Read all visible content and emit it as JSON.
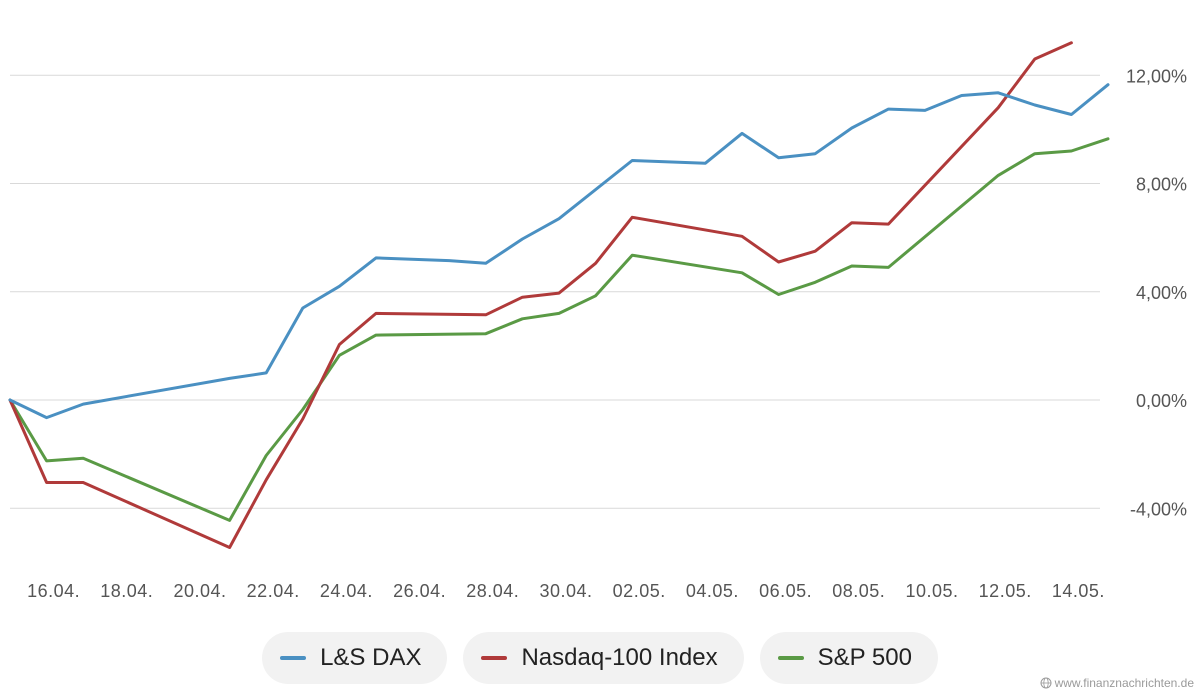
{
  "chart_data": {
    "type": "line",
    "title": "",
    "xlabel": "",
    "ylabel": "",
    "ylim": [
      -6,
      14.5
    ],
    "y_ticks": [
      {
        "value": 12,
        "label": "12,00%"
      },
      {
        "value": 8,
        "label": "8,00%"
      },
      {
        "value": 4,
        "label": "4,00%"
      },
      {
        "value": 0,
        "label": "0,00%"
      },
      {
        "value": -4,
        "label": "-4,00%"
      }
    ],
    "x_ticks": [
      "16.04.",
      "18.04.",
      "20.04.",
      "22.04.",
      "24.04.",
      "26.04.",
      "28.04.",
      "30.04.",
      "02.05.",
      "04.05.",
      "06.05.",
      "08.05.",
      "10.05.",
      "12.05.",
      "14.05."
    ],
    "x_tick_days": [
      1,
      3,
      5,
      7,
      9,
      11,
      13,
      15,
      17,
      19,
      21,
      23,
      25,
      27,
      29
    ],
    "grid": true,
    "legend_position": "bottom",
    "series": [
      {
        "name": "L&S DAX",
        "color": "#4a90c2",
        "x": [
          0,
          1,
          2,
          6,
          7,
          8,
          9,
          10,
          12,
          13,
          14,
          15,
          17,
          19,
          20,
          21,
          22,
          23,
          24,
          25,
          26,
          27,
          28,
          29,
          30
        ],
        "y": [
          0.0,
          -0.65,
          -0.15,
          0.8,
          1.0,
          3.4,
          4.2,
          5.25,
          5.15,
          5.05,
          5.95,
          6.7,
          8.85,
          8.75,
          9.85,
          8.95,
          9.1,
          10.05,
          10.75,
          10.7,
          11.25,
          11.35,
          10.9,
          10.55,
          11.65
        ]
      },
      {
        "name": "Nasdaq-100 Index",
        "color": "#b03a3a",
        "x": [
          0,
          1,
          2,
          6,
          7,
          8,
          9,
          10,
          13,
          14,
          15,
          16,
          17,
          20,
          21,
          22,
          23,
          24,
          27,
          28,
          29
        ],
        "y": [
          0.0,
          -3.05,
          -3.05,
          -5.45,
          -2.95,
          -0.7,
          2.05,
          3.2,
          3.15,
          3.8,
          3.95,
          5.05,
          6.75,
          6.05,
          5.1,
          5.5,
          6.55,
          6.5,
          10.8,
          12.6,
          13.2
        ]
      },
      {
        "name": "S&P 500",
        "color": "#5a9a45",
        "x": [
          0,
          1,
          2,
          6,
          7,
          8,
          9,
          10,
          13,
          14,
          15,
          16,
          17,
          20,
          21,
          22,
          23,
          24,
          27,
          28,
          29,
          30
        ],
        "y": [
          0.0,
          -2.25,
          -2.15,
          -4.45,
          -2.05,
          -0.35,
          1.65,
          2.4,
          2.45,
          3.0,
          3.2,
          3.85,
          5.35,
          4.7,
          3.9,
          4.35,
          4.95,
          4.9,
          8.3,
          9.1,
          9.2,
          9.65
        ]
      }
    ]
  },
  "watermark": "www.finanznachrichten.de"
}
